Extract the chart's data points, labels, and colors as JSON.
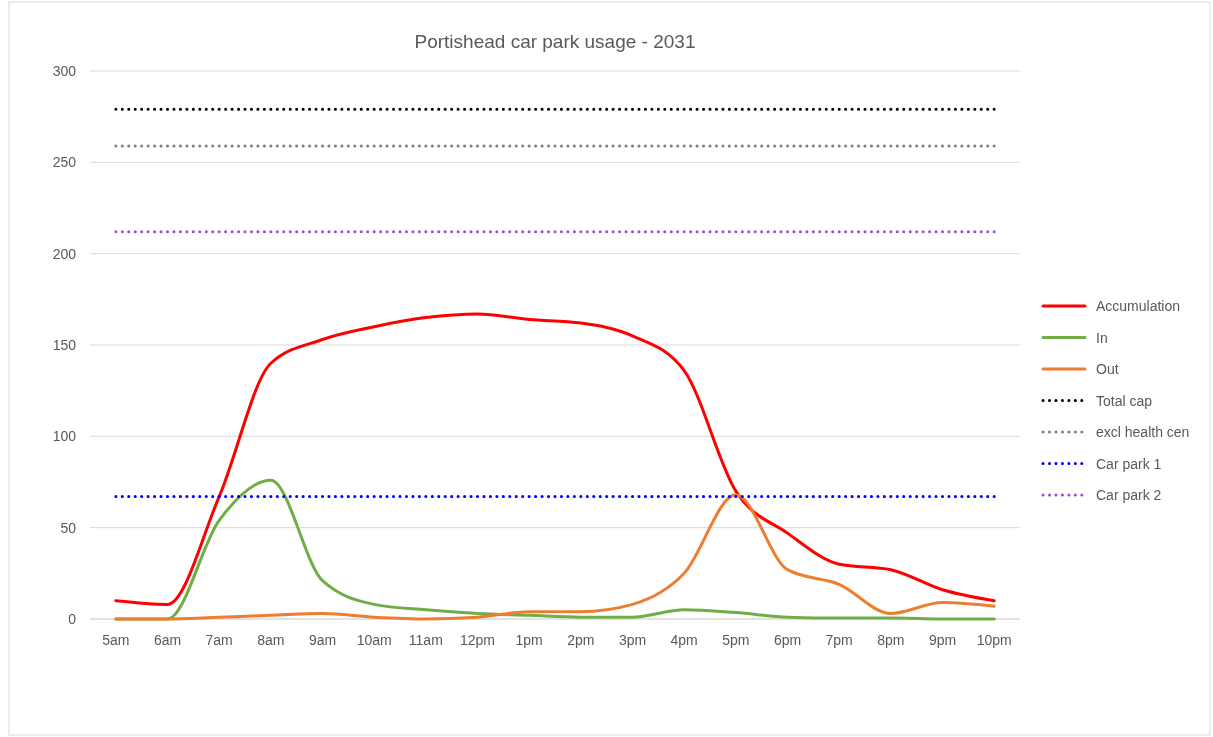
{
  "chart_data": {
    "type": "line",
    "title": "Portishead car park usage - 2031",
    "categories": [
      "5am",
      "6am",
      "7am",
      "8am",
      "9am",
      "10am",
      "11am",
      "12pm",
      "1pm",
      "2pm",
      "3pm",
      "4pm",
      "5pm",
      "6pm",
      "7pm",
      "8pm",
      "9pm",
      "10pm"
    ],
    "series": [
      {
        "name": "Accumulation",
        "color": "#ff0000",
        "values": [
          10,
          8,
          67,
          140,
          153,
          160,
          165,
          167,
          164,
          162,
          155,
          136,
          70,
          47,
          30,
          27,
          16,
          10
        ]
      },
      {
        "name": "In",
        "color": "#70ad47",
        "values": [
          0,
          0,
          54,
          76,
          21,
          8,
          5,
          3,
          2,
          1,
          1,
          5,
          3.5,
          1,
          0.5,
          0.5,
          0,
          0
        ]
      },
      {
        "name": "Out",
        "color": "#ed7d31",
        "values": [
          0,
          0,
          1,
          2,
          3,
          1,
          0,
          1,
          4,
          4,
          8,
          25,
          68,
          27,
          19,
          3,
          9,
          7
        ]
      },
      {
        "name": "Total cap",
        "color": "#000000",
        "line_style": "dotted",
        "values": [
          279,
          279,
          279,
          279,
          279,
          279,
          279,
          279,
          279,
          279,
          279,
          279,
          279,
          279,
          279,
          279,
          279,
          279
        ]
      },
      {
        "name": "excl health cen",
        "color": "#808080",
        "line_style": "dotted",
        "values": [
          259,
          259,
          259,
          259,
          259,
          259,
          259,
          259,
          259,
          259,
          259,
          259,
          259,
          259,
          259,
          259,
          259,
          259
        ]
      },
      {
        "name": "Car park 1",
        "color": "#0000ff",
        "line_style": "dotted",
        "values": [
          67,
          67,
          67,
          67,
          67,
          67,
          67,
          67,
          67,
          67,
          67,
          67,
          67,
          67,
          67,
          67,
          67,
          67
        ]
      },
      {
        "name": "Car park 2",
        "color": "#9b4fd6",
        "line_style": "dotted",
        "values": [
          212,
          212,
          212,
          212,
          212,
          212,
          212,
          212,
          212,
          212,
          212,
          212,
          212,
          212,
          212,
          212,
          212,
          212
        ]
      }
    ],
    "ylim": [
      0,
      300
    ],
    "yticks": [
      0,
      50,
      100,
      150,
      200,
      250,
      300
    ],
    "grid": "y",
    "legend": "right",
    "line_style": "solid"
  }
}
